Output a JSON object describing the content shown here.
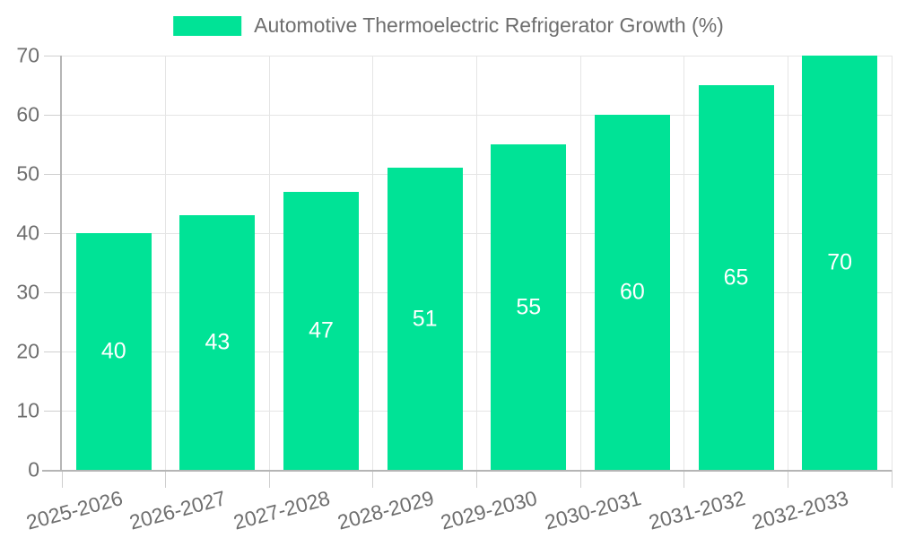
{
  "chart_data": {
    "type": "bar",
    "legend": {
      "label": "Automotive Thermoelectric Refrigerator Growth (%)",
      "position": "top"
    },
    "categories": [
      "2025-2026",
      "2026-2027",
      "2027-2028",
      "2028-2029",
      "2029-2030",
      "2030-2031",
      "2031-2032",
      "2032-2033"
    ],
    "values": [
      40,
      43,
      47,
      51,
      55,
      60,
      65,
      70
    ],
    "value_labels": [
      "40",
      "43",
      "47",
      "51",
      "55",
      "60",
      "65",
      "70"
    ],
    "ytick_labels": [
      "0",
      "10",
      "20",
      "30",
      "40",
      "50",
      "60",
      "70"
    ],
    "yticks": [
      0,
      10,
      20,
      30,
      40,
      50,
      60,
      70
    ],
    "ylim": [
      0,
      70
    ],
    "grid": true,
    "legend_position": "top",
    "colors": {
      "bar": "#00E396",
      "grid": "#e5e5e5",
      "axis": "#b5b5b5",
      "tick": "#cfcfcf",
      "text": "#6e6e6e",
      "value_label": "#ffffff",
      "background": "#ffffff"
    }
  }
}
